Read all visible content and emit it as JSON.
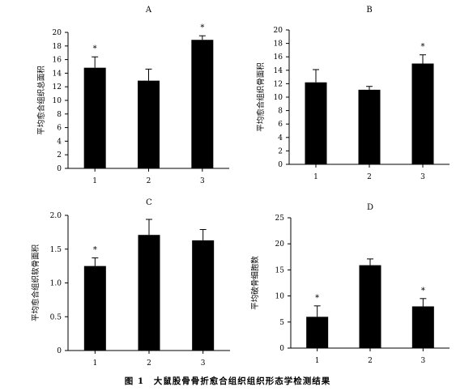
{
  "figure_caption": "图 1　大鼠股骨骨折愈合组织组织形态学检测结果",
  "chart_data": [
    {
      "type": "bar",
      "panel": "A",
      "title": "A",
      "categories": [
        "1",
        "2",
        "3"
      ],
      "values": [
        14.8,
        12.9,
        18.9
      ],
      "errors": [
        1.6,
        1.7,
        0.6
      ],
      "significance": [
        "*",
        "",
        "*"
      ],
      "xlabel": "",
      "ylabel": "平均愈合组织总面积",
      "ylim": [
        0,
        20
      ],
      "yticks": [
        "0",
        "2",
        "4",
        "6",
        "8",
        "10",
        "12",
        "14",
        "16",
        "18",
        "20"
      ],
      "bar_color": "#000000",
      "grid": false
    },
    {
      "type": "bar",
      "panel": "B",
      "title": "B",
      "categories": [
        "1",
        "2",
        "3"
      ],
      "values": [
        12.2,
        11.1,
        15.0
      ],
      "errors": [
        1.9,
        0.5,
        1.3
      ],
      "significance": [
        "",
        "",
        "*"
      ],
      "xlabel": "",
      "ylabel": "平均愈合组织骨面积",
      "ylim": [
        0,
        20
      ],
      "yticks": [
        "0",
        "2",
        "4",
        "6",
        "8",
        "10",
        "12",
        "14",
        "16",
        "18",
        "20"
      ],
      "bar_color": "#000000",
      "grid": false
    },
    {
      "type": "bar",
      "panel": "C",
      "title": "C",
      "categories": [
        "1",
        "2",
        "3"
      ],
      "values": [
        1.25,
        1.71,
        1.63
      ],
      "errors": [
        0.12,
        0.23,
        0.16
      ],
      "significance": [
        "*",
        "",
        ""
      ],
      "xlabel": "",
      "ylabel": "平均愈合组织软骨面积",
      "ylim": [
        0,
        2
      ],
      "yticks": [
        "0",
        "0.5",
        "1.0",
        "1.5",
        "2.0"
      ],
      "bar_color": "#000000",
      "grid": false
    },
    {
      "type": "bar",
      "panel": "D",
      "title": "D",
      "categories": [
        "1",
        "2",
        "3"
      ],
      "values": [
        6.0,
        15.9,
        8.0
      ],
      "errors": [
        2.1,
        1.2,
        1.5
      ],
      "significance": [
        "*",
        "",
        "*"
      ],
      "xlabel": "",
      "ylabel": "平均破骨细胞数",
      "ylim": [
        0,
        25
      ],
      "yticks": [
        "0",
        "5",
        "10",
        "15",
        "20",
        "25"
      ],
      "bar_color": "#000000",
      "grid": false
    }
  ]
}
